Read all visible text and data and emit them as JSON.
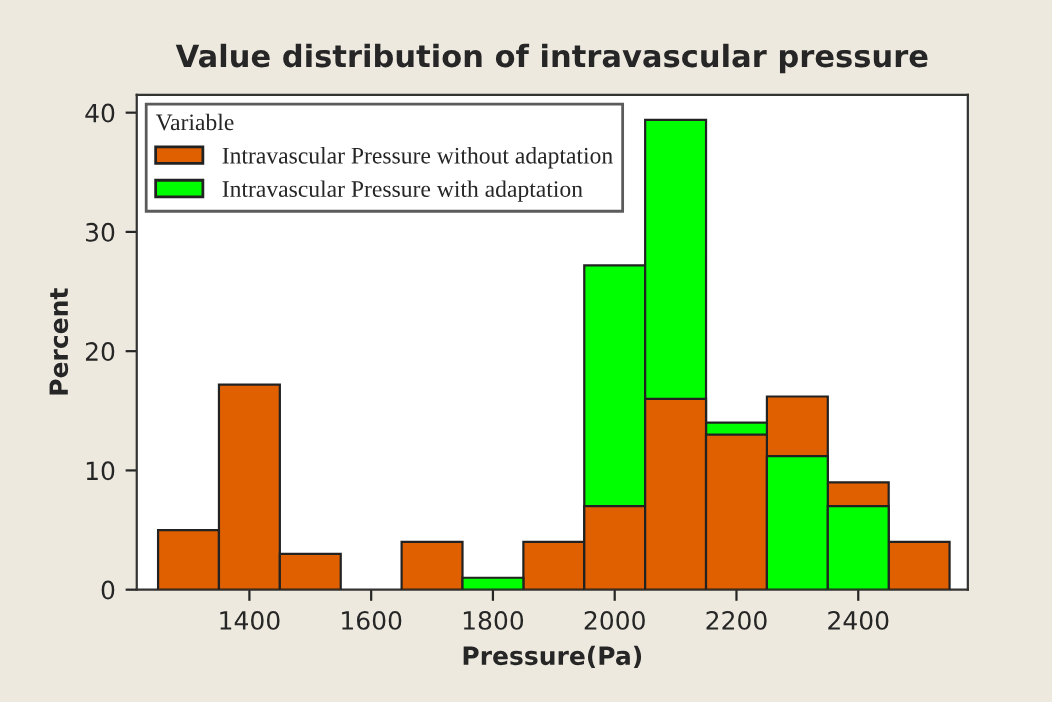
{
  "chart_data": {
    "type": "histogram",
    "title": "Value distribution of intravascular pressure",
    "xlabel": "Pressure(Pa)",
    "ylabel": "Percent",
    "legend_title": "Variable",
    "bins": [
      1250,
      1350,
      1450,
      1550,
      1650,
      1750,
      1850,
      1950,
      2050,
      2150,
      2250,
      2350,
      2450,
      2550
    ],
    "series": [
      {
        "name": "Intravascular Pressure without adaptation",
        "color": "#e06000",
        "values": [
          5,
          17.2,
          3,
          0,
          4,
          0,
          4,
          7,
          16,
          13,
          16.2,
          9,
          4
        ]
      },
      {
        "name": "Intravascular Pressure with adaptation",
        "color": "#00ff00",
        "values": [
          0,
          0,
          0,
          0,
          0,
          1,
          0,
          27.2,
          39.4,
          14,
          11.2,
          7,
          0
        ]
      }
    ],
    "xlim": [
      1215,
      2580
    ],
    "xticks": [
      1400,
      1600,
      1800,
      2000,
      2200,
      2400
    ],
    "ylim": [
      0,
      41.5
    ],
    "yticks": [
      0,
      10,
      20,
      30,
      40
    ],
    "grid": false,
    "legend": "top left"
  }
}
